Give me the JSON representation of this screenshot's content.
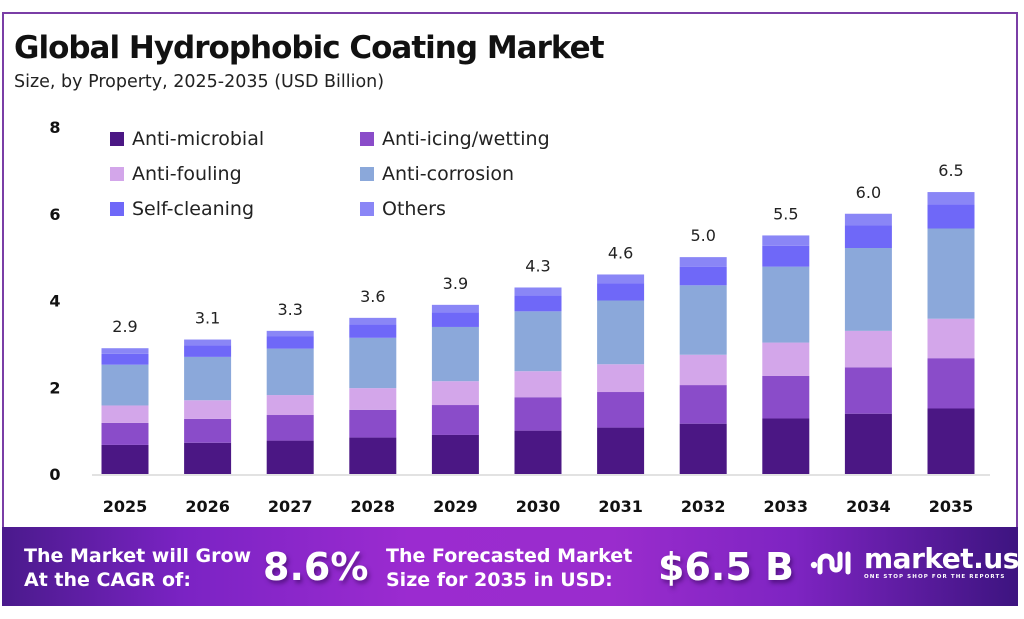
{
  "header": {
    "title": "Global Hydrophobic Coating Market",
    "subtitle": "Size, by Property, 2025-2035 (USD Billion)"
  },
  "chart_data": {
    "type": "bar",
    "stacked": true,
    "title": "Global Hydrophobic Coating Market",
    "subtitle": "Size, by Property, 2025-2035 (USD Billion)",
    "xlabel": "",
    "ylabel": "",
    "ylim": [
      0,
      8
    ],
    "yticks": [
      "0",
      "2",
      "4",
      "6",
      "8"
    ],
    "grid": false,
    "legend_position": "top-left",
    "categories": [
      "2025",
      "2026",
      "2027",
      "2028",
      "2029",
      "2030",
      "2031",
      "2032",
      "2033",
      "2034",
      "2035"
    ],
    "totals": [
      "2.9",
      "3.1",
      "3.3",
      "3.6",
      "3.9",
      "4.3",
      "4.6",
      "5.0",
      "5.5",
      "6.0",
      "6.5"
    ],
    "series": [
      {
        "name": "Anti-microbial",
        "color": "#4B1784",
        "values": [
          0.67,
          0.72,
          0.77,
          0.84,
          0.9,
          1.0,
          1.07,
          1.16,
          1.28,
          1.39,
          1.51
        ]
      },
      {
        "name": "Anti-icing/wetting",
        "color": "#8A4CC9",
        "values": [
          0.51,
          0.55,
          0.59,
          0.64,
          0.69,
          0.77,
          0.82,
          0.89,
          0.98,
          1.07,
          1.16
        ]
      },
      {
        "name": "Anti-fouling",
        "color": "#D3A6EA",
        "values": [
          0.4,
          0.43,
          0.46,
          0.5,
          0.55,
          0.6,
          0.64,
          0.7,
          0.77,
          0.84,
          0.91
        ]
      },
      {
        "name": "Anti-corrosion",
        "color": "#8BA8DA",
        "values": [
          0.94,
          1.0,
          1.07,
          1.16,
          1.25,
          1.38,
          1.47,
          1.6,
          1.75,
          1.91,
          2.08
        ]
      },
      {
        "name": "Self-cleaning",
        "color": "#6F68F8",
        "values": [
          0.25,
          0.27,
          0.28,
          0.31,
          0.34,
          0.37,
          0.4,
          0.43,
          0.48,
          0.52,
          0.56
        ]
      },
      {
        "name": "Others",
        "color": "#8A86F6",
        "values": [
          0.13,
          0.13,
          0.13,
          0.15,
          0.17,
          0.18,
          0.2,
          0.22,
          0.24,
          0.27,
          0.28
        ]
      }
    ]
  },
  "banner": {
    "cagr_label_line1": "The Market will Grow",
    "cagr_label_line2": "At the CAGR of:",
    "cagr_value": "8.6%",
    "forecast_label_line1": "The Forecasted Market",
    "forecast_label_line2": "Size for 2035 in USD:",
    "forecast_value": "$6.5 B",
    "logo_name": "market.us",
    "logo_tagline": "ONE STOP SHOP FOR THE REPORTS"
  },
  "colors": {
    "frame_border": "#7a3ea6",
    "banner_start": "#4a1a8c",
    "banner_mid": "#9b2bd0",
    "banner_end": "#3d1480"
  }
}
